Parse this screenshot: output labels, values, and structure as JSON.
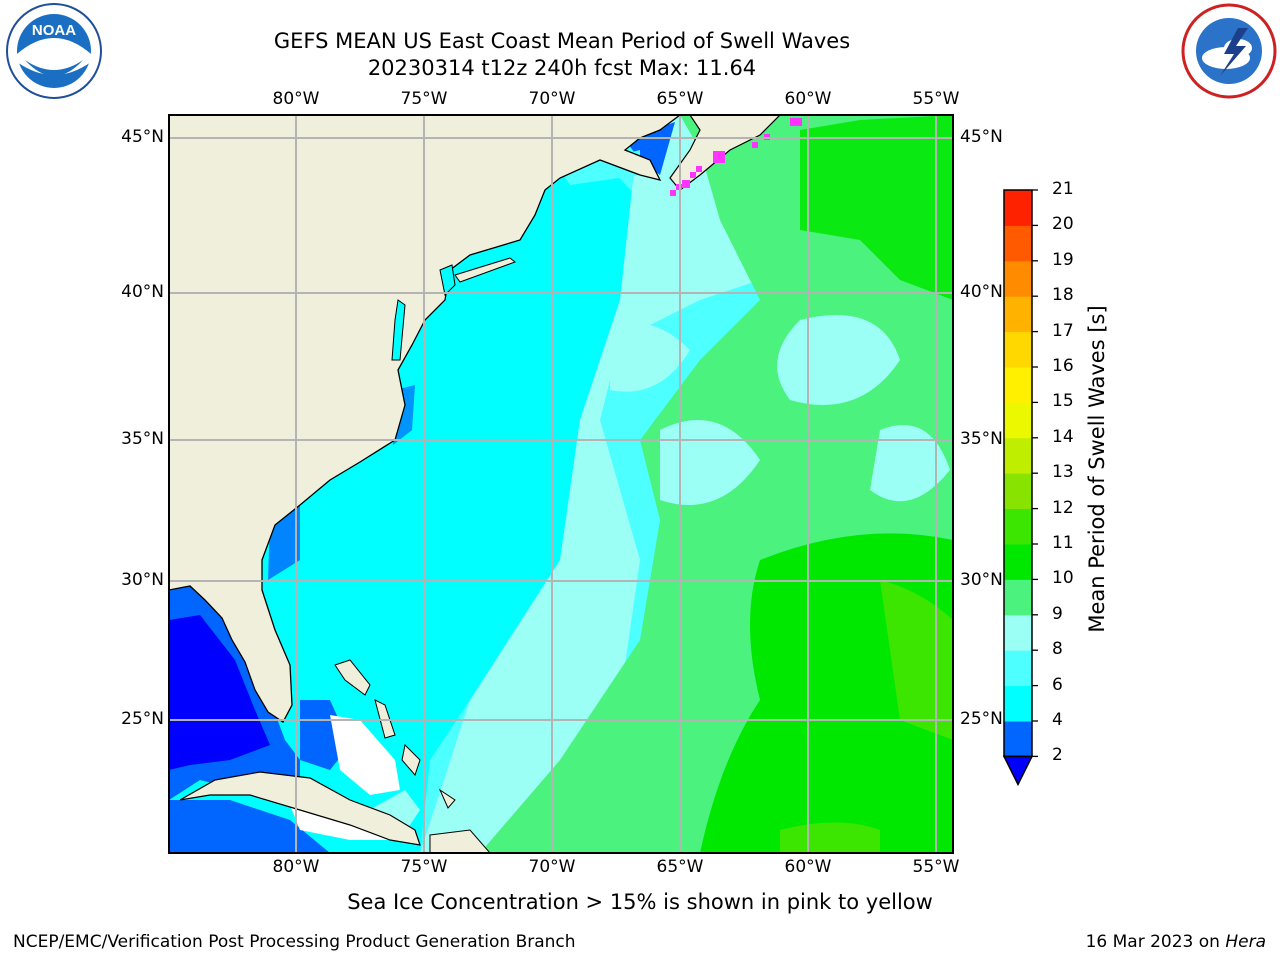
{
  "header": {
    "title_line1": "GEFS MEAN US East Coast Mean Period of Swell Waves",
    "title_line2": "20230314 t12z 240h fcst   Max: 11.64"
  },
  "logos": {
    "left": {
      "icon": "noaa-logo-icon",
      "text": "NOAA"
    },
    "right": {
      "icon": "national-weather-service-logo-icon"
    }
  },
  "map": {
    "lon_labels": [
      "80°W",
      "75°W",
      "70°W",
      "65°W",
      "60°W",
      "55°W"
    ],
    "lat_labels": [
      "45°N",
      "40°N",
      "35°N",
      "30°N",
      "25°N"
    ],
    "land_color": "#efefdc",
    "ice_color": "#ff33ff"
  },
  "colorbar": {
    "label": "Mean Period of Swell Waves [s]",
    "levels": [
      "2",
      "4",
      "6",
      "8",
      "9",
      "10",
      "11",
      "12",
      "13",
      "14",
      "15",
      "16",
      "17",
      "18",
      "19",
      "20",
      "21"
    ],
    "colors": [
      "#0066ff",
      "#00ffff",
      "#4dffff",
      "#9bfff6",
      "#4cf27e",
      "#00e800",
      "#3de600",
      "#88e300",
      "#bfee00",
      "#ecf800",
      "#fff000",
      "#ffd800",
      "#ffb300",
      "#ff8c00",
      "#ff5a00",
      "#ff2200"
    ],
    "underflow_color": "#0000ff"
  },
  "note": "Sea Ice Concentration > 15% is shown in pink to yellow",
  "footer": {
    "left": "NCEP/EMC/Verification Post Processing Product Generation Branch",
    "right_prefix": "16 Mar 2023 on ",
    "right_host": "Hera"
  }
}
